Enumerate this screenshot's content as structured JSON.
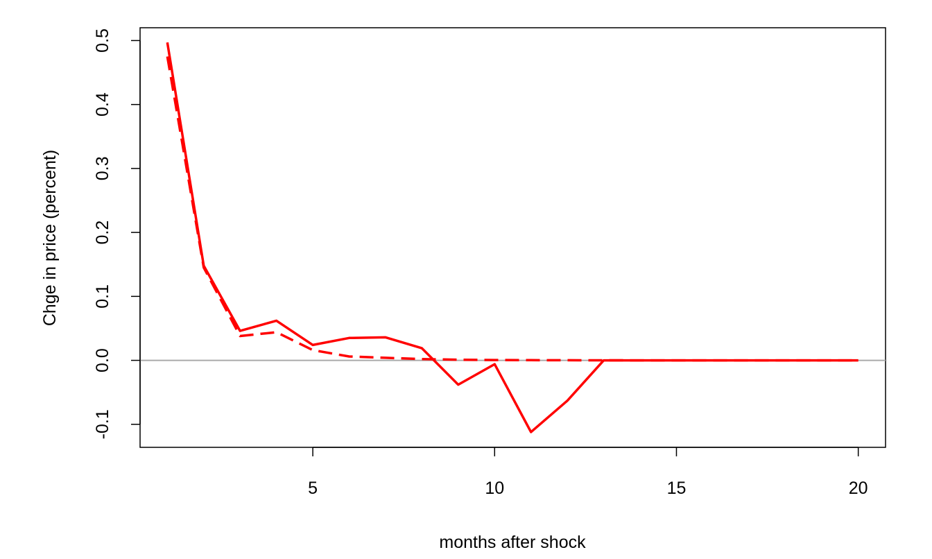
{
  "chart_data": {
    "type": "line",
    "title": "",
    "xlabel": "months after shock",
    "ylabel": "Chge in price (percent)",
    "xlim": [
      0.25,
      20.75
    ],
    "ylim": [
      -0.136,
      0.52
    ],
    "x_ticks": [
      5,
      10,
      15,
      20
    ],
    "y_ticks": [
      -0.1,
      0.0,
      0.1,
      0.2,
      0.3,
      0.4,
      0.5
    ],
    "reference_line": {
      "y": 0.0,
      "color": "#aaaaaa"
    },
    "grid": false,
    "legend": "none",
    "x": [
      1,
      2,
      3,
      4,
      5,
      6,
      7,
      8,
      9,
      10,
      11,
      12,
      13,
      14,
      15,
      16,
      17,
      18,
      19,
      20
    ],
    "series": [
      {
        "style": "solid",
        "color": "#ff0000",
        "values": [
          0.497,
          0.148,
          0.046,
          0.062,
          0.024,
          0.035,
          0.036,
          0.019,
          -0.038,
          -0.006,
          -0.112,
          -0.063,
          0.0,
          0.0,
          0.0,
          0.0,
          0.0,
          0.0,
          0.0,
          0.0
        ]
      },
      {
        "style": "dashed",
        "color": "#ff0000",
        "values": [
          0.475,
          0.145,
          0.038,
          0.044,
          0.016,
          0.006,
          0.004,
          0.002,
          0.001,
          0.0005,
          0.0003,
          0.0002,
          0.0001,
          0.0,
          0.0,
          0.0,
          0.0,
          0.0,
          0.0,
          0.0
        ]
      }
    ]
  }
}
